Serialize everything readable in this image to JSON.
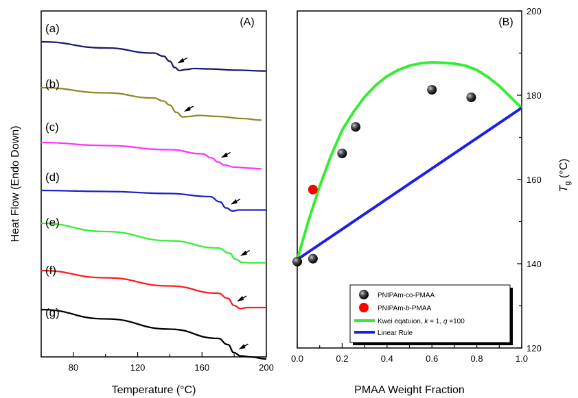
{
  "chart_data": [
    {
      "type": "line",
      "panel_label": "(A)",
      "xlabel": "Temperature (°C)",
      "ylabel": "Heat Flow (Endo Down)",
      "xlim": [
        60,
        200
      ],
      "xticks": [
        80,
        120,
        160,
        200
      ],
      "series": [
        {
          "label": "(a)",
          "color": "#1a1a6e",
          "x": [
            60,
            100,
            130,
            136,
            140,
            143,
            146,
            150,
            155,
            165,
            180,
            200
          ],
          "y": [
            0,
            -0.3,
            -0.55,
            -0.7,
            -0.95,
            -1.25,
            -1.4,
            -1.35,
            -1.3,
            -1.32,
            -1.38,
            -1.42
          ],
          "arrow_x": 143
        },
        {
          "label": "(b)",
          "color": "#8b8b2a",
          "x": [
            60,
            100,
            130,
            136,
            140,
            144,
            148,
            152,
            158,
            170,
            185,
            197
          ],
          "y": [
            0,
            -0.25,
            -0.5,
            -0.65,
            -0.85,
            -1.2,
            -1.42,
            -1.4,
            -1.35,
            -1.4,
            -1.5,
            -1.58
          ],
          "arrow_x": 147
        },
        {
          "label": "(c)",
          "color": "#ff33ff",
          "x": [
            60,
            100,
            140,
            160,
            166,
            170,
            174,
            180,
            190,
            197
          ],
          "y": [
            0,
            -0.15,
            -0.35,
            -0.55,
            -0.75,
            -0.95,
            -1.1,
            -1.2,
            -1.25,
            -1.28
          ],
          "arrow_x": 170
        },
        {
          "label": "(d)",
          "color": "#2020c8",
          "x": [
            60,
            100,
            140,
            165,
            171,
            175,
            179,
            183,
            190,
            200
          ],
          "y": [
            0,
            -0.05,
            -0.15,
            -0.3,
            -0.55,
            -0.85,
            -1.0,
            -0.95,
            -0.95,
            -0.95
          ],
          "arrow_x": 176
        },
        {
          "label": "(e)",
          "color": "#33ee33",
          "x": [
            60,
            100,
            140,
            170,
            177,
            181,
            185,
            190,
            200
          ],
          "y": [
            0,
            -0.4,
            -0.85,
            -1.2,
            -1.45,
            -1.75,
            -1.9,
            -1.92,
            -1.92
          ],
          "arrow_x": 182
        },
        {
          "label": "(f)",
          "color": "#ff1a1a",
          "x": [
            60,
            100,
            140,
            170,
            176,
            180,
            184,
            188,
            200
          ],
          "y": [
            0,
            -0.35,
            -0.75,
            -1.1,
            -1.35,
            -1.7,
            -1.85,
            -1.8,
            -1.8
          ],
          "arrow_x": 180
        },
        {
          "label": "(g)",
          "color": "#000000",
          "x": [
            60,
            100,
            140,
            170,
            176,
            180,
            184,
            190,
            200
          ],
          "y": [
            0,
            -0.45,
            -0.95,
            -1.4,
            -1.7,
            -2.1,
            -2.25,
            -2.3,
            -2.4
          ],
          "arrow_x": 181
        }
      ]
    },
    {
      "type": "scatter",
      "panel_label": "(B)",
      "xlabel": "PMAA Weight Fraction",
      "ylabel_main": "T",
      "ylabel_sub": "g",
      "ylabel_rest": " (°C)",
      "xlim": [
        0.0,
        1.0
      ],
      "ylim": [
        120,
        200
      ],
      "xticks": [
        "0.0",
        "0.2",
        "0.4",
        "0.6",
        "0.8",
        "1.0"
      ],
      "yticks": [
        "120",
        "140",
        "160",
        "180",
        "200"
      ],
      "series": [
        {
          "name": "PNIPAm-co-PMAA",
          "kind": "points",
          "color": "#000000",
          "x": [
            0.0,
            0.07,
            0.2,
            0.26,
            0.6,
            0.775
          ],
          "y": [
            140.5,
            141.2,
            166.2,
            172.5,
            181.3,
            179.5
          ]
        },
        {
          "name": "PNIPAm-b-PMAA",
          "kind": "points",
          "color": "#ff0000",
          "x": [
            0.07
          ],
          "y": [
            157.6
          ]
        },
        {
          "name": "Kwei eqatuion, k = 1, q =100",
          "kind": "line",
          "color": "#33ee33",
          "x": [
            0.0,
            0.05,
            0.1,
            0.15,
            0.2,
            0.25,
            0.3,
            0.35,
            0.4,
            0.45,
            0.5,
            0.55,
            0.6,
            0.65,
            0.7,
            0.75,
            0.8,
            0.85,
            0.9,
            0.95,
            1.0
          ],
          "y": [
            141.0,
            150.2,
            158.4,
            165.6,
            171.7,
            176.0,
            179.6,
            182.4,
            184.5,
            186.0,
            187.0,
            187.6,
            187.8,
            187.7,
            187.5,
            187.0,
            186.0,
            184.3,
            182.2,
            179.6,
            177.0
          ]
        },
        {
          "name": "Linear Rule",
          "kind": "line",
          "color": "#1e1ee6",
          "x": [
            0.0,
            1.0
          ],
          "y": [
            141.0,
            177.0
          ]
        }
      ],
      "legend": {
        "location": "lower-right",
        "entries": [
          {
            "text": "PNIPAm-co-PMAA"
          },
          {
            "text": "PNIPAm-b-PMAA",
            "italic": "b"
          },
          {
            "text": "Kwei eqatuion, k = 1, q =100",
            "italic_k": "k",
            "italic_q": "q"
          },
          {
            "text": "Linear Rule"
          }
        ]
      }
    }
  ]
}
